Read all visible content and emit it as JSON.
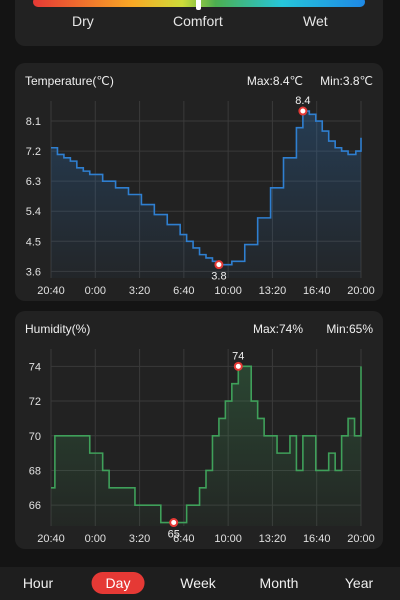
{
  "comfort_scale": {
    "labels": [
      {
        "text": "Dry",
        "color": "#e53935"
      },
      {
        "text": "Comfort",
        "color": "#43a047"
      },
      {
        "text": "Wet",
        "color": "#1e88e5"
      }
    ]
  },
  "temperature": {
    "title": "Temperature(℃)",
    "max_label": "Max:8.4℃",
    "min_label": "Min:3.8℃"
  },
  "humidity": {
    "title": "Humidity(%)",
    "max_label": "Max:74%",
    "min_label": "Min:65%"
  },
  "tabs": [
    {
      "label": "Hour",
      "active": false
    },
    {
      "label": "Day",
      "active": true
    },
    {
      "label": "Week",
      "active": false
    },
    {
      "label": "Month",
      "active": false
    },
    {
      "label": "Year",
      "active": false
    }
  ],
  "colors": {
    "temperature_line": "#2f7fd0",
    "humidity_line": "#3fa05a",
    "accent": "#e53935",
    "card_bg": "#222222"
  },
  "chart_data": [
    {
      "type": "line",
      "title": "Temperature(℃)",
      "x_ticks": [
        "20:40",
        "0:00",
        "3:20",
        "6:40",
        "10:00",
        "13:20",
        "16:40",
        "20:00"
      ],
      "y_ticks": [
        3.6,
        4.5,
        5.4,
        6.3,
        7.2,
        8.1
      ],
      "ylim": [
        3.4,
        8.7
      ],
      "x_hours": [
        0,
        0.5,
        1,
        1.5,
        2,
        2.5,
        3,
        4,
        5,
        6,
        7,
        8,
        9,
        10,
        10.5,
        11,
        11.5,
        12,
        12.5,
        13,
        14,
        15,
        16,
        17,
        18,
        19,
        19.5,
        20,
        20.5,
        21,
        21.5,
        22,
        22.5,
        23,
        23.3,
        23.6,
        24
      ],
      "values": [
        7.3,
        7.1,
        7.0,
        6.9,
        6.7,
        6.6,
        6.5,
        6.3,
        6.1,
        5.9,
        5.6,
        5.3,
        5.0,
        4.7,
        4.5,
        4.3,
        4.1,
        4.0,
        3.9,
        3.8,
        3.9,
        4.4,
        5.2,
        6.1,
        7.0,
        7.9,
        8.4,
        8.3,
        8.1,
        7.8,
        7.5,
        7.3,
        7.2,
        7.1,
        7.1,
        7.2,
        7.6
      ],
      "max": {
        "x_hours": 19.5,
        "value": 8.4,
        "label": "8.4"
      },
      "min": {
        "x_hours": 13,
        "value": 3.8,
        "label": "3.8"
      }
    },
    {
      "type": "line",
      "title": "Humidity(%)",
      "x_ticks": [
        "20:40",
        "0:00",
        "3:20",
        "6:40",
        "10:00",
        "13:20",
        "16:40",
        "20:00"
      ],
      "y_ticks": [
        66,
        68,
        70,
        72,
        74
      ],
      "ylim": [
        64.8,
        75
      ],
      "x_hours": [
        0,
        0.3,
        1,
        2,
        3,
        3.5,
        4,
        4.5,
        5,
        5.5,
        6,
        6.5,
        7,
        7.5,
        8,
        8.5,
        9,
        9.5,
        10,
        10.5,
        11,
        11.5,
        12,
        12.5,
        13,
        13.5,
        14,
        14.5,
        15,
        15.5,
        16,
        16.5,
        17,
        17.5,
        18,
        18.5,
        19,
        19.5,
        20,
        20.5,
        21,
        21.5,
        22,
        22.5,
        23,
        23.5,
        24
      ],
      "values": [
        67,
        70,
        70,
        70,
        69,
        69,
        68,
        67,
        67,
        67,
        67,
        66,
        66,
        66,
        66,
        65,
        65,
        65,
        65,
        66,
        66,
        67,
        68,
        70,
        71,
        72,
        73,
        74,
        74,
        72,
        71,
        70,
        70,
        69,
        69,
        70,
        68,
        70,
        70,
        68,
        68,
        69,
        68,
        70,
        71,
        70,
        74
      ],
      "max": {
        "x_hours": 14.5,
        "value": 74,
        "label": "74"
      },
      "min": {
        "x_hours": 9.5,
        "value": 65,
        "label": "65"
      }
    }
  ]
}
